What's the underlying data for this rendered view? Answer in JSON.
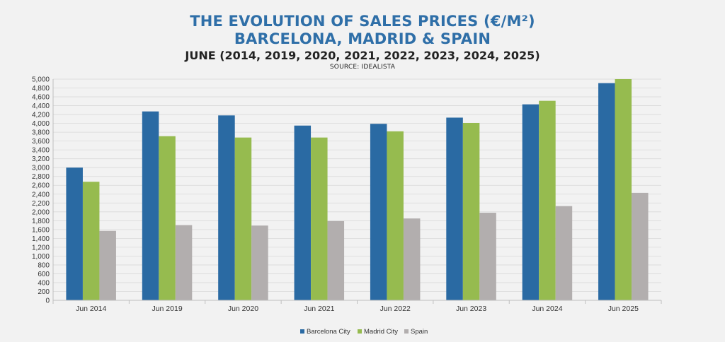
{
  "header": {
    "title_line1": "THE EVOLUTION OF SALES PRICES (€/M²)",
    "title_line2": "BARCELONA, MADRID & SPAIN",
    "subtitle": "JUNE (2014, 2019, 2020, 2021, 2022, 2023, 2024, 2025)",
    "source": "SOURCE: IDEALISTA"
  },
  "chart_data": {
    "type": "bar",
    "categories": [
      "Jun 2014",
      "Jun 2019",
      "Jun 2020",
      "Jun 2021",
      "Jun 2022",
      "Jun 2023",
      "Jun 2024",
      "Jun 2025"
    ],
    "series": [
      {
        "name": "Barcelona City",
        "color": "#2a6aa3",
        "values": [
          3000,
          4270,
          4180,
          3950,
          3990,
          4130,
          4430,
          4910
        ]
      },
      {
        "name": "Madrid City",
        "color": "#96bb4f",
        "values": [
          2680,
          3710,
          3680,
          3680,
          3820,
          4010,
          4510,
          5000
        ]
      },
      {
        "name": "Spain",
        "color": "#b2aeae",
        "values": [
          1570,
          1700,
          1690,
          1790,
          1850,
          1980,
          2130,
          2430
        ]
      }
    ],
    "ylim": [
      0,
      5000
    ],
    "ytick_step": 200,
    "ytick_labels": [
      "0",
      "200",
      "400",
      "600",
      "800",
      "1,000",
      "1,200",
      "1,400",
      "1,600",
      "1,800",
      "2,000",
      "2,200",
      "2,400",
      "2,600",
      "2,800",
      "3,000",
      "3,200",
      "3,400",
      "3,600",
      "3,800",
      "4,000",
      "4,200",
      "4,400",
      "4,600",
      "4,800",
      "5,000"
    ],
    "grid": true,
    "legend_position": "bottom"
  }
}
